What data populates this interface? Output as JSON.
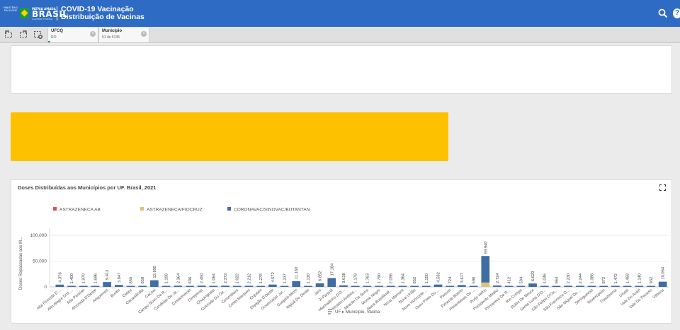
{
  "header": {
    "ministerio_label": "MINISTÉRIO DA SAÚDE",
    "patria_label": "PÁTRIA AMADA",
    "brasil_label": "BRASIL",
    "gov_label": "GOVERNO FEDERAL",
    "title_line1": "COVID-19 Vacinação",
    "title_line2": "Distribuição de Vacinas",
    "search_icon": "search-icon",
    "help_label": "?"
  },
  "selections": [
    {
      "label": "UFCQ",
      "value": "RO"
    },
    {
      "label": "Município",
      "value": "51 de 5135"
    }
  ],
  "colors": {
    "header": "#2e6bc4",
    "banner": "#fdc100",
    "astrazeneca_ab": "#d9534f",
    "astrazeneca_fiocruz": "#d9c47a",
    "coronavac": "#3e6ea4"
  },
  "chart_data": {
    "type": "bar",
    "stacked": true,
    "title": "Doses Distribuídas aos Municípios por UF. Brasil, 2021",
    "ylabel": "Doses Repassadas aos M...",
    "y_ticks": [
      "100.000",
      "50.000",
      "0"
    ],
    "ylim": [
      0,
      100000
    ],
    "legend_position": "top",
    "xaxis_caption": "UF ▸ Município, Vacina",
    "categories": [
      "Alta Floresta D'...",
      "Alto Alegre Dos ...",
      "Alto Paraíso",
      "Alvorada D'Oeste",
      "Ariquemes",
      "Buritis",
      "Cabixi",
      "Cacaulândia",
      "Cacoal",
      "Campo Novo De R...",
      "Candeias Do Ja...",
      "Castanheiras",
      "Cerejeiras",
      "Chupinguaia",
      "Colorado Do Oe...",
      "Corumbiara",
      "Costa Marques",
      "Cujubim",
      "Espigão D'Oeste",
      "Governador Jor...",
      "Guajará-Mirim",
      "Itapuã Do Oeste",
      "Jaru",
      "Ji-Paraná",
      "Machadinho D'O...",
      "Ministro Andrea...",
      "Mirante Da Serra",
      "Monte Negro",
      "Nova Brasilândi...",
      "Nova Mamoré",
      "Nova União",
      "Novo Horizonte ...",
      "Ouro Preto Do ...",
      "Parecis",
      "Pimenta Bueno",
      "Pimenteiras Do ...",
      "Porto Velho",
      "Presidente Médici",
      "Primavera De R...",
      "Rio Crespo",
      "Rolim De Moura",
      "Santa Luzia D'O...",
      "São Felipe D'Oe...",
      "São Francisco D...",
      "São Miguel Do ...",
      "Seringueiras",
      "Teixeirópolis",
      "Theobroma",
      "Urupá",
      "Vale Do Anari",
      "Vale Do Paraíso",
      "Vilhena"
    ],
    "value_labels": [
      "4.376",
      "1.400",
      "1.970",
      "1.696",
      "9.412",
      "3.847",
      "850",
      "858",
      "12.895",
      "1.108",
      "2.364",
      "636",
      "2.450",
      "1.084",
      "2.372",
      "1.022",
      "2.212",
      "1.278",
      "4.572",
      "1.237",
      "11.160",
      "1.130",
      "6.852",
      "17.184",
      "3.038",
      "1.178",
      "1.763",
      "1.790",
      "2.098",
      "1.364",
      "852",
      "1.150",
      "4.582",
      "724",
      "3.617",
      "598",
      "59.940",
      "2.724",
      "412",
      "584",
      "6.629",
      "1.046",
      "964",
      "2.230",
      "2.244",
      "1.386",
      "872",
      "1.472",
      "1.458",
      "1.140",
      "932",
      "10.064"
    ],
    "series": [
      {
        "name": "ASTRAZENECA AB",
        "values": [
          0,
          0,
          0,
          0,
          0,
          0,
          0,
          0,
          0,
          0,
          0,
          0,
          0,
          0,
          0,
          0,
          0,
          0,
          0,
          0,
          0,
          0,
          0,
          0,
          0,
          0,
          0,
          0,
          0,
          0,
          0,
          0,
          0,
          0,
          0,
          0,
          0,
          0,
          0,
          0,
          0,
          0,
          0,
          0,
          0,
          0,
          0,
          0,
          0,
          0,
          0,
          0
        ]
      },
      {
        "name": "ASTRAZENECA/FIOCRUZ",
        "values": [
          0,
          0,
          0,
          0,
          0,
          0,
          0,
          0,
          0,
          0,
          0,
          0,
          0,
          0,
          0,
          0,
          0,
          0,
          0,
          0,
          0,
          0,
          0,
          0,
          0,
          0,
          0,
          0,
          0,
          0,
          0,
          0,
          0,
          0,
          0,
          0,
          8500,
          0,
          0,
          0,
          0,
          0,
          0,
          0,
          0,
          0,
          0,
          0,
          0,
          0,
          0,
          0
        ]
      },
      {
        "name": "CORONAVAC/SINOVAC/BUTANTAN",
        "values": [
          4376,
          1400,
          1970,
          1696,
          9412,
          3847,
          850,
          858,
          12895,
          1108,
          2364,
          636,
          2450,
          1084,
          2372,
          1022,
          2212,
          1278,
          4572,
          1237,
          11160,
          1130,
          6852,
          17184,
          3038,
          1178,
          1763,
          1790,
          2098,
          1364,
          852,
          1150,
          4582,
          724,
          3617,
          598,
          51440,
          2724,
          412,
          584,
          6629,
          1046,
          964,
          2230,
          2244,
          1386,
          872,
          1472,
          1458,
          1140,
          932,
          10064
        ]
      }
    ]
  }
}
